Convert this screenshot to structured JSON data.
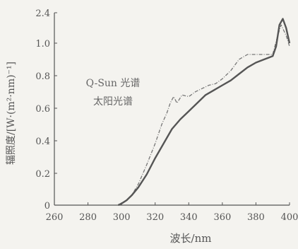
{
  "chart_data": {
    "type": "line",
    "title": "",
    "xlabel": "波长/nm",
    "ylabel": "辐照度/[W·(m²·nm)⁻¹]",
    "xlim": [
      260,
      400
    ],
    "ylim_labels": [
      "0",
      "0.2",
      "0.4",
      "0.6",
      "0.8",
      "1.0",
      "2.4"
    ],
    "y_axis_note": "broken axis: top tick reads 2.4 while others are evenly spaced by 0.2",
    "x_ticks": [
      "260",
      "280",
      "300",
      "320",
      "340",
      "360",
      "380",
      "400"
    ],
    "legend": [
      "Q-Sun 光谱",
      "太阳光谱"
    ],
    "colors": {
      "series_1": "#777777",
      "series_2": "#555555",
      "axis": "#555555",
      "background": "#f4f3ef"
    },
    "series": [
      {
        "name": "Q-Sun 光谱",
        "style": "dashed",
        "x": [
          298,
          300,
          303,
          306,
          310,
          315,
          320,
          324,
          327,
          329,
          331,
          333,
          336,
          340,
          344,
          348,
          352,
          356,
          360,
          365,
          370,
          375,
          380,
          385,
          390,
          393,
          395,
          398,
          400
        ],
        "y": [
          0.0,
          0.01,
          0.03,
          0.06,
          0.13,
          0.25,
          0.38,
          0.5,
          0.57,
          0.63,
          0.67,
          0.63,
          0.68,
          0.67,
          0.7,
          0.72,
          0.74,
          0.75,
          0.78,
          0.83,
          0.9,
          0.93,
          0.93,
          0.93,
          0.93,
          1.05,
          1.12,
          1.05,
          0.98
        ]
      },
      {
        "name": "太阳光谱",
        "style": "solid",
        "x": [
          298,
          300,
          303,
          306,
          310,
          315,
          320,
          325,
          330,
          335,
          340,
          345,
          350,
          355,
          360,
          365,
          370,
          375,
          380,
          385,
          390,
          392,
          394,
          396,
          398,
          400
        ],
        "y": [
          0.0,
          0.01,
          0.03,
          0.06,
          0.11,
          0.19,
          0.29,
          0.38,
          0.47,
          0.53,
          0.58,
          0.63,
          0.68,
          0.71,
          0.74,
          0.77,
          0.81,
          0.85,
          0.88,
          0.9,
          0.92,
          0.98,
          1.12,
          1.16,
          1.1,
          1.0
        ]
      }
    ]
  }
}
